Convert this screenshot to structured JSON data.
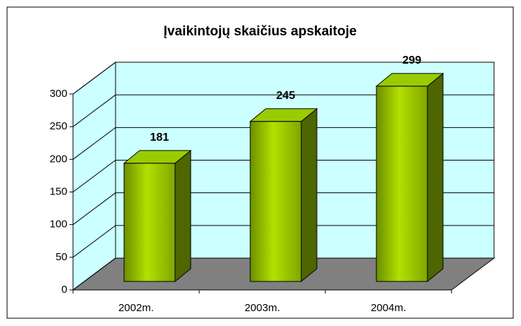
{
  "chart_data": {
    "type": "bar3d",
    "title": "Įvaikintojų skaičius apskaitoje",
    "categories": [
      "2002m.",
      "2003m.",
      "2004m."
    ],
    "values": [
      181,
      245,
      299
    ],
    "color": "#99cc00",
    "ylim": [
      0,
      300
    ],
    "yticks": [
      0,
      50,
      100,
      150,
      200,
      250,
      300
    ],
    "grid": true
  }
}
